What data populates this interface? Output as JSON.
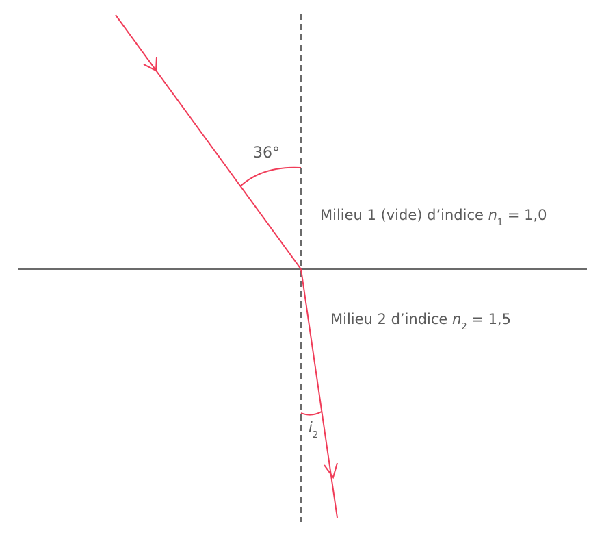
{
  "angle_incidence_label": "36°",
  "medium1": {
    "prefix": "Milieu 1 (vide) d’indice ",
    "var": "n",
    "sub": "1",
    "value": " = 1,0"
  },
  "medium2": {
    "prefix": "Milieu 2 d’indice ",
    "var": "n",
    "sub": "2",
    "value": " = 1,5"
  },
  "angle_refraction": {
    "var": "i",
    "sub": "2"
  },
  "colors": {
    "ray": "#f03c58",
    "normal": "#6b6b6b",
    "interface": "#6b6b6b",
    "text": "#5b5b5b"
  }
}
